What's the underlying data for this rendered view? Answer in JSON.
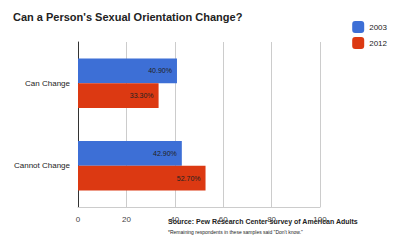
{
  "chart_data": {
    "type": "bar",
    "orientation": "horizontal",
    "title": "Can a Person's Sexual Orientation Change?",
    "annotations": [
      "Source: Pew Research Center survey of American Adults",
      "*Remaining respondents in these samples said \"Don't know.\""
    ],
    "categories": [
      "Can Change",
      "Cannot Change"
    ],
    "series": [
      {
        "name": "2003",
        "color": "#3d6fd6",
        "values": [
          40.9,
          42.9
        ],
        "value_labels": [
          "40.90%",
          "42.90%"
        ]
      },
      {
        "name": "2012",
        "color": "#dc3912",
        "values": [
          33.3,
          52.7
        ],
        "value_labels": [
          "33.30%",
          "52.70%"
        ]
      }
    ],
    "xlim": [
      0,
      100
    ],
    "xticks": [
      0,
      20,
      40,
      60,
      80,
      100
    ],
    "grid": true,
    "legend": "top-right",
    "data_labels": true
  }
}
